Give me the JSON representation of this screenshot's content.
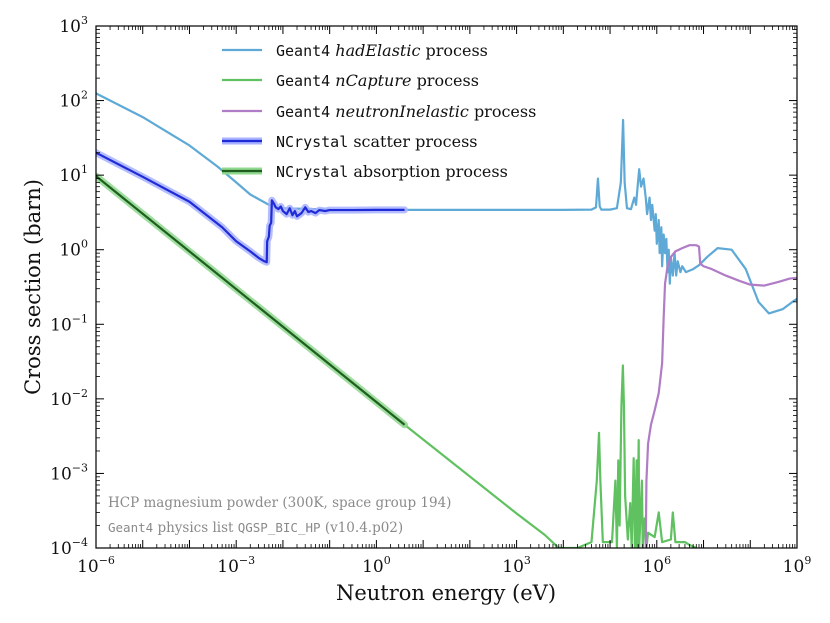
{
  "chart_data": {
    "type": "line",
    "title": "",
    "xlabel": "Neutron energy (eV)",
    "ylabel": "Cross section (barn)",
    "xscale": "log",
    "yscale": "log",
    "xlim": [
      1e-06,
      1000000000.0
    ],
    "ylim": [
      0.0001,
      1000.0
    ],
    "x_ticks": [
      {
        "base": "10",
        "exp": "−6",
        "value": 1e-06
      },
      {
        "base": "10",
        "exp": "−3",
        "value": 0.001
      },
      {
        "base": "10",
        "exp": "0",
        "value": 1
      },
      {
        "base": "10",
        "exp": "3",
        "value": 1000.0
      },
      {
        "base": "10",
        "exp": "6",
        "value": 1000000.0
      },
      {
        "base": "10",
        "exp": "9",
        "value": 1000000000.0
      }
    ],
    "y_ticks": [
      {
        "base": "10",
        "exp": "−4",
        "value": 0.0001
      },
      {
        "base": "10",
        "exp": "−3",
        "value": 0.001
      },
      {
        "base": "10",
        "exp": "−2",
        "value": 0.01
      },
      {
        "base": "10",
        "exp": "−1",
        "value": 0.1
      },
      {
        "base": "10",
        "exp": "0",
        "value": 1
      },
      {
        "base": "10",
        "exp": "1",
        "value": 10
      },
      {
        "base": "10",
        "exp": "2",
        "value": 100
      },
      {
        "base": "10",
        "exp": "3",
        "value": 1000
      }
    ],
    "legend_position": "top-center",
    "series": [
      {
        "id": "had",
        "legend_prefix": "Geant4",
        "legend_italic": "hadElastic",
        "legend_suffix": "process",
        "color": "#5ea9d6",
        "style": "thin",
        "points": [
          [
            1e-06,
            125
          ],
          [
            1e-05,
            60
          ],
          [
            0.0001,
            25
          ],
          [
            0.0004,
            13
          ],
          [
            0.001,
            8
          ],
          [
            0.002,
            5.5
          ],
          [
            0.005,
            4
          ],
          [
            0.01,
            3.6
          ],
          [
            0.1,
            3.45
          ],
          [
            1,
            3.42
          ],
          [
            10,
            3.42
          ],
          [
            100,
            3.42
          ],
          [
            1000,
            3.42
          ],
          [
            10000,
            3.42
          ],
          [
            40000,
            3.45
          ],
          [
            50000,
            3.7
          ],
          [
            55000,
            9
          ],
          [
            60000,
            3.8
          ],
          [
            65000,
            3.45
          ],
          [
            100000,
            3.45
          ],
          [
            140000,
            3.6
          ],
          [
            170000,
            8
          ],
          [
            190000,
            55
          ],
          [
            205000,
            8
          ],
          [
            230000,
            3.6
          ],
          [
            280000,
            3.5
          ],
          [
            330000,
            5
          ],
          [
            360000,
            4
          ],
          [
            380000,
            6
          ],
          [
            420000,
            12
          ],
          [
            460000,
            7
          ],
          [
            520000,
            9
          ],
          [
            580000,
            5
          ],
          [
            620000,
            3
          ],
          [
            700000,
            5
          ],
          [
            750000,
            2.5
          ],
          [
            800000,
            4
          ],
          [
            900000,
            1.8
          ],
          [
            950000,
            3
          ],
          [
            1000000,
            1.2
          ],
          [
            1100000,
            2.5
          ],
          [
            1150000,
            0.9
          ],
          [
            1250000,
            2
          ],
          [
            1300000,
            0.6
          ],
          [
            1400000,
            1.6
          ],
          [
            1500000,
            0.9
          ],
          [
            1600000,
            1.4
          ],
          [
            1700000,
            0.5
          ],
          [
            1800000,
            1.0
          ],
          [
            1900000,
            0.35
          ],
          [
            2000000,
            0.8
          ],
          [
            2200000,
            0.45
          ],
          [
            2400000,
            0.9
          ],
          [
            2600000,
            0.45
          ],
          [
            2800000,
            0.7
          ],
          [
            3200000,
            0.5
          ],
          [
            3500000,
            0.6
          ],
          [
            4200000,
            0.5
          ],
          [
            6000000,
            0.55
          ],
          [
            8000000,
            0.62
          ],
          [
            12000000,
            0.8
          ],
          [
            20000000,
            1.05
          ],
          [
            40000000,
            1.0
          ],
          [
            80000000,
            0.55
          ],
          [
            150000000,
            0.2
          ],
          [
            250000000,
            0.14
          ],
          [
            500000000,
            0.16
          ],
          [
            800000000,
            0.2
          ],
          [
            1000000000,
            0.22
          ]
        ]
      },
      {
        "id": "cap",
        "legend_prefix": "Geant4",
        "legend_italic": "nCapture",
        "legend_suffix": "process",
        "color": "#5fc15f",
        "style": "thin",
        "points": [
          [
            1e-06,
            9.7
          ],
          [
            4,
            0.0045
          ],
          [
            1000,
            0.00029
          ],
          [
            4000,
            0.00015
          ],
          [
            8000,
            0.0001
          ],
          [
            20000,
            0.0001
          ],
          [
            40000,
            0.00012
          ],
          [
            52000,
            0.0008
          ],
          [
            58000,
            0.0035
          ],
          [
            62000,
            0.0008
          ],
          [
            70000,
            0.00012
          ],
          [
            110000,
            0.00012
          ],
          [
            130000,
            0.0008
          ],
          [
            140000,
            0.0001
          ],
          [
            150000,
            0.0015
          ],
          [
            160000,
            0.0002
          ],
          [
            175000,
            0.008
          ],
          [
            188000,
            0.028
          ],
          [
            198000,
            0.008
          ],
          [
            210000,
            0.0005
          ],
          [
            240000,
            0.00013
          ],
          [
            270000,
            0.0004
          ],
          [
            290000,
            0.0001
          ],
          [
            320000,
            0.0016
          ],
          [
            340000,
            0.0001
          ],
          [
            370000,
            0.0015
          ],
          [
            380000,
            0.0001
          ],
          [
            410000,
            0.0028
          ],
          [
            420000,
            0.0001
          ],
          [
            480000,
            0.0008
          ],
          [
            500000,
            0.0001
          ],
          [
            550000,
            0.00025
          ],
          [
            600000,
            0.0001
          ],
          [
            650000,
            0.00016
          ],
          [
            900000,
            0.00014
          ],
          [
            1100000,
            0.0003
          ],
          [
            1300000,
            0.00012
          ],
          [
            2000000,
            0.00013
          ],
          [
            2200000,
            0.0003
          ],
          [
            2500000,
            0.00012
          ],
          [
            4000000,
            0.00012
          ],
          [
            5000000,
            0.00011
          ],
          [
            7000000,
            0.0001
          ]
        ]
      },
      {
        "id": "inel",
        "legend_prefix": "Geant4",
        "legend_italic": "neutronInelastic",
        "legend_suffix": "process",
        "color": "#b07cc6",
        "style": "thin",
        "points": [
          [
            580000,
            0.0001
          ],
          [
            600000,
            0.0008
          ],
          [
            650000,
            0.0025
          ],
          [
            750000,
            0.0045
          ],
          [
            900000,
            0.007
          ],
          [
            1100000,
            0.012
          ],
          [
            1300000,
            0.03
          ],
          [
            1400000,
            0.12
          ],
          [
            1500000,
            0.35
          ],
          [
            1700000,
            0.6
          ],
          [
            2000000,
            0.8
          ],
          [
            2500000,
            0.95
          ],
          [
            3500000,
            1.05
          ],
          [
            5000000,
            1.15
          ],
          [
            7000000,
            1.15
          ],
          [
            8000000,
            1.1
          ],
          [
            8500000,
            0.65
          ],
          [
            10000000,
            0.6
          ],
          [
            15000000,
            0.55
          ],
          [
            30000000,
            0.45
          ],
          [
            60000000,
            0.38
          ],
          [
            100000000,
            0.34
          ],
          [
            200000000,
            0.33
          ],
          [
            400000000,
            0.37
          ],
          [
            700000000,
            0.41
          ],
          [
            1000000000,
            0.42
          ]
        ]
      },
      {
        "id": "nc_scat",
        "legend_prefix": "NCrystal",
        "legend_italic": "",
        "legend_suffix": "scatter process",
        "color": "#1f2bd6",
        "glow": "#a8b2ff",
        "style": "thick",
        "points": [
          [
            1e-06,
            20
          ],
          [
            1e-05,
            9.5
          ],
          [
            0.0001,
            4.4
          ],
          [
            0.0005,
            2
          ],
          [
            0.001,
            1.3
          ],
          [
            0.002,
            0.95
          ],
          [
            0.003,
            0.78
          ],
          [
            0.004,
            0.7
          ],
          [
            0.0045,
            0.68
          ],
          [
            0.0046,
            1.3
          ],
          [
            0.005,
            1.5
          ],
          [
            0.0052,
            2.1
          ],
          [
            0.0056,
            2.3
          ],
          [
            0.0058,
            4.6
          ],
          [
            0.0065,
            4.1
          ],
          [
            0.007,
            3.7
          ],
          [
            0.008,
            3.5
          ],
          [
            0.009,
            3.8
          ],
          [
            0.01,
            3.3
          ],
          [
            0.012,
            3.0
          ],
          [
            0.014,
            3.6
          ],
          [
            0.016,
            2.9
          ],
          [
            0.018,
            3.3
          ],
          [
            0.02,
            2.8
          ],
          [
            0.025,
            3.1
          ],
          [
            0.03,
            3.7
          ],
          [
            0.035,
            3.2
          ],
          [
            0.04,
            3.3
          ],
          [
            0.05,
            3.1
          ],
          [
            0.06,
            3.4
          ],
          [
            0.08,
            3.3
          ],
          [
            0.1,
            3.4
          ],
          [
            0.3,
            3.4
          ],
          [
            1,
            3.42
          ],
          [
            4,
            3.42
          ]
        ]
      },
      {
        "id": "nc_abs",
        "legend_prefix": "NCrystal",
        "legend_italic": "",
        "legend_suffix": "absorption process",
        "color": "#1f5e1f",
        "glow": "#8fd88f",
        "style": "thick",
        "points": [
          [
            1e-06,
            9.7
          ],
          [
            4,
            0.0045
          ]
        ]
      }
    ],
    "annotations": [
      {
        "id": "material",
        "text": "HCP magnesium powder (300K, space group 194)"
      },
      {
        "id": "physics",
        "mono1": "Geant4",
        "text1": "physics list",
        "mono2": "QGSP_BIC_HP",
        "text2": "(v10.4.p02)"
      }
    ]
  }
}
